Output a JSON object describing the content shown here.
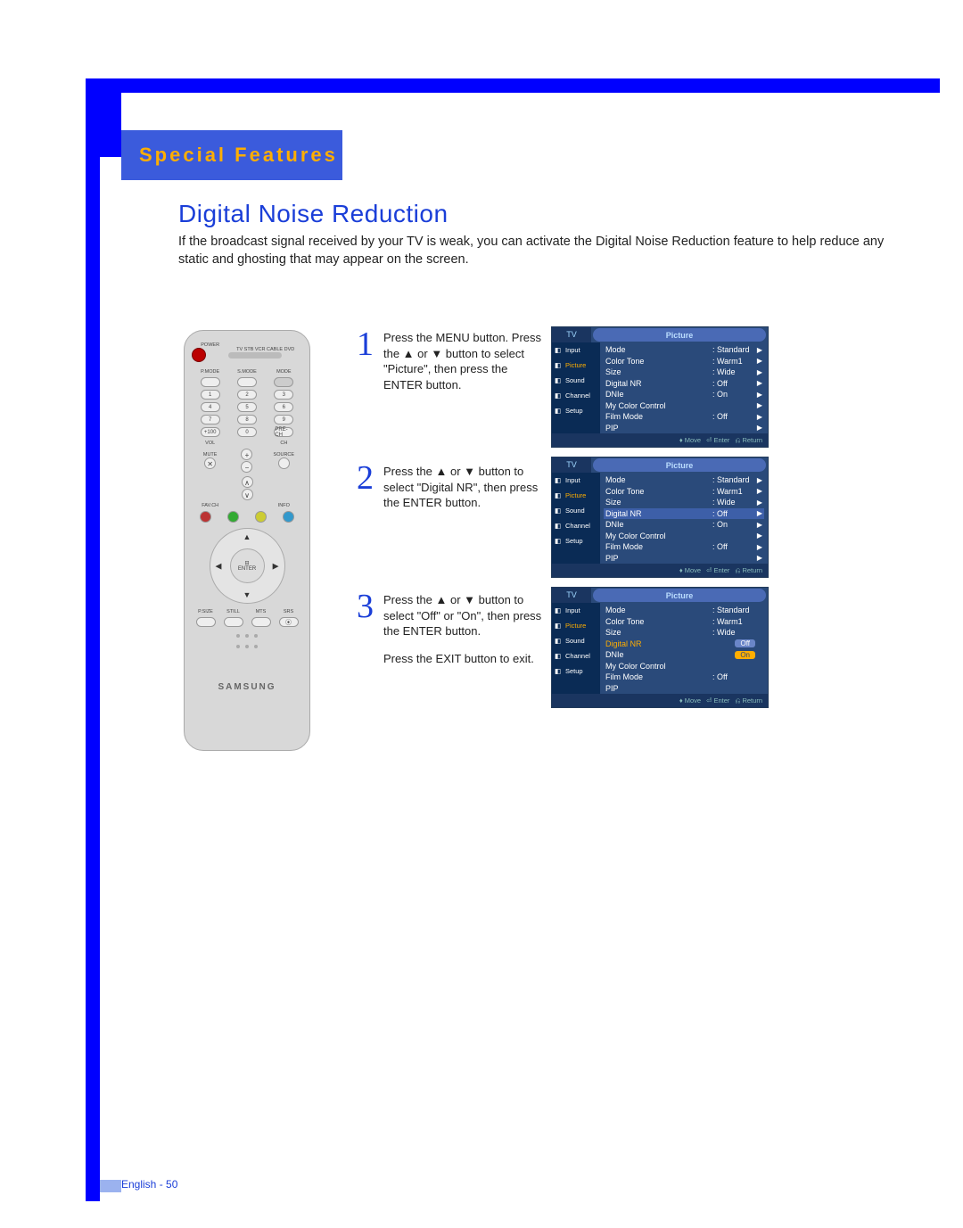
{
  "page": {
    "header": "Special Features",
    "title": "Digital Noise Reduction",
    "intro": "If the broadcast signal received by your TV is weak, you can activate the Digital Noise Reduction feature to help reduce any static and ghosting that may appear on the screen.",
    "footer": "English - 50"
  },
  "steps": [
    {
      "num": "1",
      "text": "Press the MENU button. Press the ▲ or ▼ button to select \"Picture\", then press the ENTER button."
    },
    {
      "num": "2",
      "text": "Press the ▲ or ▼ button to select \"Digital NR\", then press the ENTER button."
    },
    {
      "num": "3",
      "text": "Press the ▲ or ▼ button to select \"Off\" or \"On\", then press the ENTER button.",
      "extra": "Press the EXIT button to exit."
    }
  ],
  "osd_common": {
    "tv_label": "TV",
    "menu_title": "Picture",
    "tabs": [
      "Input",
      "Picture",
      "Sound",
      "Channel",
      "Setup"
    ],
    "footer": {
      "move": "Move",
      "enter": "Enter",
      "return": "Return"
    },
    "colors": {
      "panel_bg": "#2a4a7a",
      "header_bg": "#4a6ab5",
      "tab_bg": "#0a2b55",
      "tab_active_fg": "#ffae00",
      "highlight_bg": "#3d5fa8",
      "orange": "#ffae00"
    }
  },
  "osd_screens": [
    {
      "active_tab": 1,
      "items": [
        {
          "k": "Mode",
          "v": ": Standard",
          "ar": "▶"
        },
        {
          "k": "Color Tone",
          "v": ": Warm1",
          "ar": "▶"
        },
        {
          "k": "Size",
          "v": ": Wide",
          "ar": "▶"
        },
        {
          "k": "Digital NR",
          "v": ": Off",
          "ar": "▶"
        },
        {
          "k": "DNIe",
          "v": ": On",
          "ar": "▶"
        },
        {
          "k": "My Color Control",
          "v": "",
          "ar": "▶"
        },
        {
          "k": "Film Mode",
          "v": ": Off",
          "ar": "▶"
        },
        {
          "k": "PIP",
          "v": "",
          "ar": "▶"
        }
      ]
    },
    {
      "active_tab": 1,
      "items": [
        {
          "k": "Mode",
          "v": ": Standard",
          "ar": "▶"
        },
        {
          "k": "Color Tone",
          "v": ": Warm1",
          "ar": "▶"
        },
        {
          "k": "Size",
          "v": ": Wide",
          "ar": "▶"
        },
        {
          "k": "Digital NR",
          "v": ": Off",
          "ar": "▶",
          "row_hl": true
        },
        {
          "k": "DNIe",
          "v": ": On",
          "ar": "▶"
        },
        {
          "k": "My Color Control",
          "v": "",
          "ar": "▶"
        },
        {
          "k": "Film Mode",
          "v": ": Off",
          "ar": "▶"
        },
        {
          "k": "PIP",
          "v": "",
          "ar": "▶"
        }
      ]
    },
    {
      "active_tab": 1,
      "items": [
        {
          "k": "Mode",
          "v": ": Standard",
          "ar": ""
        },
        {
          "k": "Color Tone",
          "v": ": Warm1",
          "ar": ""
        },
        {
          "k": "Size",
          "v": ": Wide",
          "ar": ""
        },
        {
          "k": "Digital NR",
          "pill": "Off",
          "orange_key": true
        },
        {
          "k": "DNIe",
          "pill": "On",
          "pill_orange": true
        },
        {
          "k": "My Color Control",
          "v": "",
          "ar": ""
        },
        {
          "k": "Film Mode",
          "v": ": Off",
          "ar": ""
        },
        {
          "k": "PIP",
          "v": "",
          "ar": ""
        }
      ]
    }
  ],
  "remote": {
    "top_row": {
      "power": "POWER",
      "selectors": "TV  STB  VCR  CABLE  DVD"
    },
    "mode_row": [
      "P.MODE",
      "S.MODE",
      "MODE"
    ],
    "numpad": [
      [
        "1",
        "2",
        "3"
      ],
      [
        "4",
        "5",
        "6"
      ],
      [
        "7",
        "8",
        "9"
      ],
      [
        "+100",
        "0",
        "PRE-CH"
      ]
    ],
    "vol_ch": {
      "vol": "VOL",
      "ch": "CH",
      "mute": "MUTE",
      "source": "SOURCE"
    },
    "mid_row": [
      "FAV.CH",
      "INFO"
    ],
    "color_row": [
      "MENU",
      "",
      "",
      "EXIT"
    ],
    "enter_label": "ENTER",
    "pip_symbol": "⊟",
    "bottom_row": [
      "P.SIZE",
      "STILL",
      "MTS",
      "SRS"
    ],
    "brand": "SAMSUNG"
  }
}
